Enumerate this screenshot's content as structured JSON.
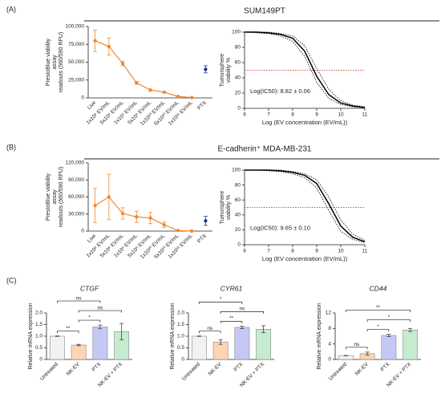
{
  "sections": [
    {
      "label": "(A)",
      "title": "SUM149PT"
    },
    {
      "label": "(B)",
      "title": "E-cadherin⁺ MDA-MB-231"
    },
    {
      "label": "(C)"
    }
  ],
  "chart_data": [
    {
      "type": "line",
      "categories": [
        "Live",
        "1x10⁸ EV/mL",
        "5x10⁸ EV/mL",
        "1x10⁹ EV/mL",
        "5x10⁹ EV/mL",
        "1x10¹⁰ EV/mL",
        "5x10¹⁰ EV/mL",
        "1x10¹¹ EV/mL",
        "PTX"
      ],
      "series": [
        {
          "color": "#f08a33",
          "values": [
            80000,
            72000,
            48000,
            21000,
            11000,
            8000,
            2000,
            500,
            null
          ],
          "errors": [
            15000,
            12000,
            3000,
            2000,
            1000,
            500,
            300,
            200,
            null
          ]
        },
        {
          "color": "#1f3a93",
          "values": [
            null,
            null,
            null,
            null,
            null,
            null,
            null,
            null,
            40000
          ],
          "errors": [
            null,
            null,
            null,
            null,
            null,
            null,
            null,
            null,
            5000
          ]
        }
      ],
      "ylabel": [
        "PrestoBlue viability",
        "assay",
        "readouts (560/590 RFU)"
      ],
      "ylim": [
        0,
        100000
      ],
      "yticks": [
        0,
        {
          "value": 25000,
          "label": "25,000"
        },
        {
          "value": 50000,
          "label": "50,000"
        },
        {
          "value": 75000,
          "label": "75,000"
        },
        {
          "value": 100000,
          "label": "100,000"
        }
      ]
    },
    {
      "type": "line",
      "x": [
        6,
        6.5,
        7,
        7.5,
        8,
        8.5,
        9,
        9.5,
        10,
        10.5,
        11
      ],
      "series": [
        {
          "color": "#000000",
          "values": [
            100,
            100,
            99,
            97,
            92,
            75,
            42,
            18,
            7,
            3,
            1
          ]
        },
        {
          "color": "#000000",
          "dash": "dotted",
          "values": [
            100,
            100,
            100,
            98,
            95,
            82,
            52,
            25,
            10,
            4,
            2
          ]
        },
        {
          "color": "#000000",
          "dash": "dotted",
          "values": [
            100,
            99,
            98,
            95,
            88,
            68,
            34,
            13,
            5,
            2,
            1
          ]
        }
      ],
      "reference_line": {
        "value": 50,
        "color": "#d9534f"
      },
      "annotation": "Log(IC50): 8.82 ± 0.06",
      "xlabel": "Log (EV concentration (EV/mL))",
      "ylabel": [
        "Tumorsphere",
        "viability %"
      ],
      "xlim": [
        6,
        11
      ],
      "xticks": [
        6,
        7,
        8,
        9,
        10,
        11
      ],
      "ylim": [
        0,
        100
      ],
      "yticks": [
        0,
        20,
        40,
        60,
        80,
        100
      ]
    },
    {
      "type": "line",
      "categories": [
        "Live",
        "1x10⁸ EV/mL",
        "5x10⁸ EV/mL",
        "1x10⁹ EV/mL",
        "5x10⁹ EV/mL",
        "1x10¹⁰ EV/mL",
        "5x10¹⁰ EV/mL",
        "1x10¹¹ EV/mL",
        "PTX"
      ],
      "series": [
        {
          "color": "#f08a33",
          "values": [
            45000,
            60000,
            31000,
            25000,
            23000,
            11000,
            1000,
            0,
            null
          ],
          "errors": [
            30000,
            40000,
            10000,
            10000,
            10000,
            5000,
            1000,
            0,
            null
          ]
        },
        {
          "color": "#1f3a93",
          "values": [
            null,
            null,
            null,
            null,
            null,
            null,
            null,
            null,
            18000
          ],
          "errors": [
            null,
            null,
            null,
            null,
            null,
            null,
            null,
            null,
            8000
          ]
        }
      ],
      "ylabel": [
        "PrestoBlue viability",
        "assay",
        "readouts (560/590 RFU)"
      ],
      "ylim": [
        0,
        120000
      ],
      "yticks": [
        0,
        {
          "value": 30000,
          "label": "30,000"
        },
        {
          "value": 60000,
          "label": "60,000"
        },
        {
          "value": 90000,
          "label": "90,000"
        },
        {
          "value": 120000,
          "label": "120,000"
        }
      ]
    },
    {
      "type": "line",
      "x": [
        6,
        6.5,
        7,
        7.5,
        8,
        8.5,
        9,
        9.5,
        10,
        10.5,
        11
      ],
      "series": [
        {
          "color": "#000000",
          "values": [
            100,
            100,
            100,
            99,
            97,
            93,
            82,
            55,
            25,
            10,
            4
          ]
        },
        {
          "color": "#000000",
          "dash": "dotted",
          "values": [
            100,
            100,
            100,
            100,
            98,
            95,
            87,
            64,
            33,
            14,
            6
          ]
        },
        {
          "color": "#000000",
          "dash": "dotted",
          "values": [
            100,
            100,
            99,
            98,
            95,
            90,
            76,
            46,
            18,
            7,
            3
          ]
        }
      ],
      "reference_line": {
        "value": 50,
        "color": "#d9534f"
      },
      "annotation": "Log(IC50): 9.65 ± 0.10",
      "xlabel": "Log (EV concentration (EV/mL))",
      "ylabel": [
        "Tumorsphere",
        "viability %"
      ],
      "xlim": [
        6,
        11
      ],
      "xticks": [
        6,
        7,
        8,
        9,
        10,
        11
      ],
      "ylim": [
        0,
        100
      ],
      "yticks": [
        0,
        20,
        40,
        60,
        80,
        100
      ]
    },
    {
      "type": "bar",
      "title": "CTGF",
      "categories": [
        "Untreated",
        "NK-EV",
        "PTX",
        "NK-EV + PTX"
      ],
      "values": [
        1.0,
        0.62,
        1.4,
        1.2
      ],
      "errors": [
        0.01,
        0.03,
        0.08,
        0.35
      ],
      "colors": [
        "#f2f2f2",
        "#fcd5b4",
        "#c5c8f5",
        "#c6ecd0"
      ],
      "ylabel": "Relative mRNA expression",
      "ylim": [
        0,
        2
      ],
      "yticks": [
        0,
        0.5,
        {
          "value": 1,
          "label": "1.0"
        },
        1.5,
        {
          "value": 2,
          "label": "2.0"
        }
      ],
      "brackets": [
        {
          "between": [
            "Untreated",
            "NK-EV"
          ],
          "label": "**"
        },
        {
          "between": [
            "NK-EV",
            "PTX"
          ],
          "label": "*"
        },
        {
          "between": [
            "NK-EV",
            "NK-EV + PTX"
          ],
          "label": "ns"
        },
        {
          "between": [
            "Untreated",
            "PTX"
          ],
          "label": "ns"
        }
      ]
    },
    {
      "type": "bar",
      "title": "CYR61",
      "categories": [
        "Untreated",
        "NK-EV",
        "PTX",
        "NK-EV + PTX"
      ],
      "values": [
        1.0,
        0.75,
        1.38,
        1.3
      ],
      "errors": [
        0.01,
        0.1,
        0.05,
        0.15
      ],
      "colors": [
        "#f2f2f2",
        "#fcd5b4",
        "#c5c8f5",
        "#c6ecd0"
      ],
      "ylabel": "Relative mRNA expression",
      "ylim": [
        0,
        2
      ],
      "yticks": [
        0,
        0.5,
        {
          "value": 1,
          "label": "1.0"
        },
        1.5,
        {
          "value": 2,
          "label": "2.0"
        }
      ],
      "brackets": [
        {
          "between": [
            "Untreated",
            "NK-EV"
          ],
          "label": "ns"
        },
        {
          "between": [
            "NK-EV",
            "PTX"
          ],
          "label": "**"
        },
        {
          "between": [
            "NK-EV",
            "NK-EV + PTX"
          ],
          "label": "ns"
        },
        {
          "between": [
            "Untreated",
            "PTX"
          ],
          "label": "*"
        }
      ]
    },
    {
      "type": "bar",
      "title": "CD44",
      "categories": [
        "Untreated",
        "NK-EV",
        "PTX",
        "NK-EV + PTX"
      ],
      "values": [
        1.0,
        1.5,
        6.2,
        7.6
      ],
      "errors": [
        0.05,
        0.4,
        0.3,
        0.4
      ],
      "colors": [
        "#f2f2f2",
        "#fcd5b4",
        "#c5c8f5",
        "#c6ecd0"
      ],
      "ylabel": "Relative mRNA expression",
      "ylim": [
        0,
        12
      ],
      "yticks": [
        0,
        4,
        8,
        12
      ],
      "brackets": [
        {
          "between": [
            "Untreated",
            "NK-EV"
          ],
          "label": "ns"
        },
        {
          "between": [
            "NK-EV",
            "PTX"
          ],
          "label": "*"
        },
        {
          "between": [
            "NK-EV",
            "NK-EV + PTX"
          ],
          "label": "*"
        },
        {
          "between": [
            "Untreated",
            "NK-EV + PTX"
          ],
          "label": "**"
        }
      ]
    }
  ]
}
